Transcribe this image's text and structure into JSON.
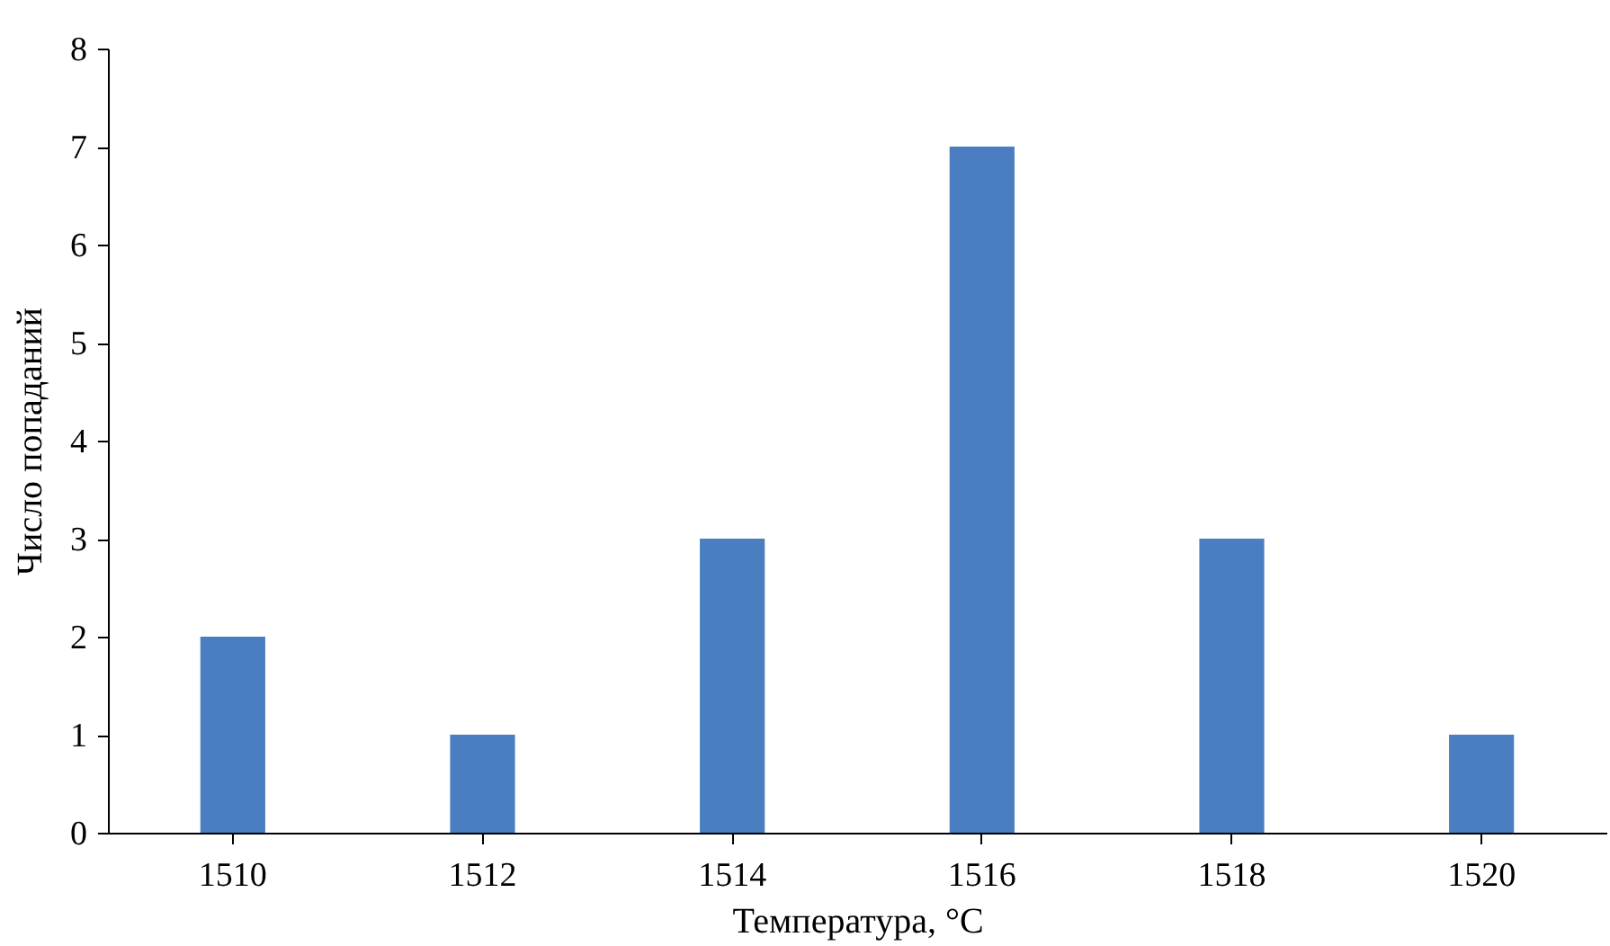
{
  "chart_data": {
    "type": "bar",
    "xlabel": "Температура, °C",
    "ylabel": "Число попаданий",
    "categories": [
      "1510",
      "1512",
      "1514",
      "1516",
      "1518",
      "1520"
    ],
    "values": [
      2,
      1,
      3,
      7,
      3,
      1
    ],
    "color": "#4a7ec0",
    "ylim": [
      0,
      8
    ],
    "yticks": [
      0,
      1,
      2,
      3,
      4,
      5,
      6,
      7,
      8
    ],
    "grid": false
  }
}
